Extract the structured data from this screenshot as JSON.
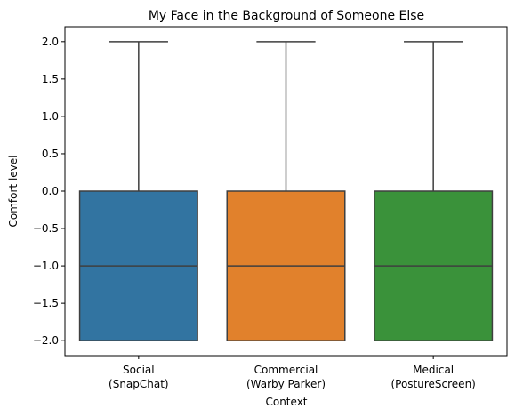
{
  "chart_data": {
    "type": "boxplot",
    "title": "My Face in the Background of Someone Else",
    "xlabel": "Context",
    "ylabel": "Comfort level",
    "ylim": [
      -2.2,
      2.2
    ],
    "yticks": [
      -2.0,
      -1.5,
      -1.0,
      -0.5,
      0.0,
      0.5,
      1.0,
      1.5,
      2.0
    ],
    "ytick_labels": [
      "−2.0",
      "−1.5",
      "−1.0",
      "−0.5",
      "0.0",
      "0.5",
      "1.0",
      "1.5",
      "2.0"
    ],
    "grid": false,
    "categories": [
      {
        "line1": "Social",
        "line2": "(SnapChat)"
      },
      {
        "line1": "Commercial",
        "line2": "(Warby Parker)"
      },
      {
        "line1": "Medical",
        "line2": "(PostureScreen)"
      }
    ],
    "boxes": [
      {
        "whisker_low": -2.0,
        "q1": -2.0,
        "median": -1.0,
        "q3": 0.0,
        "whisker_high": 2.0,
        "color": "#3274a1"
      },
      {
        "whisker_low": -2.0,
        "q1": -2.0,
        "median": -1.0,
        "q3": 0.0,
        "whisker_high": 2.0,
        "color": "#e1812c"
      },
      {
        "whisker_low": -2.0,
        "q1": -2.0,
        "median": -1.0,
        "q3": 0.0,
        "whisker_high": 2.0,
        "color": "#3a923a"
      }
    ],
    "edge_color": "#3f3f3f"
  }
}
